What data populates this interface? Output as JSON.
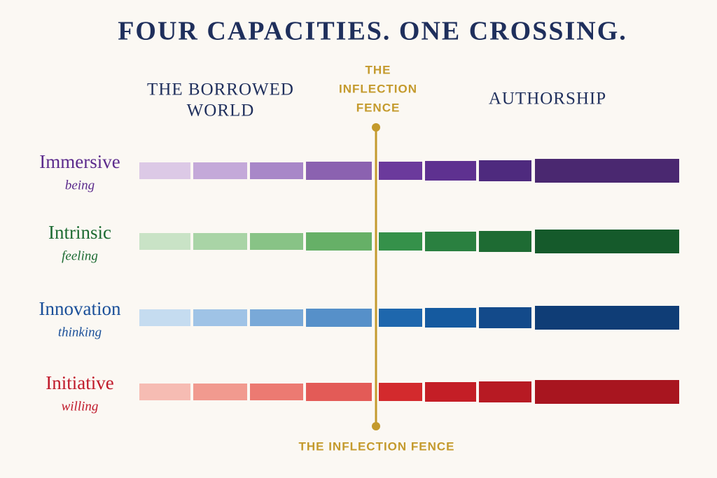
{
  "title": "FOUR CAPACITIES. ONE CROSSING.",
  "columns": {
    "left": [
      "THE BORROWED",
      "WORLD"
    ],
    "middle": [
      "THE",
      "INFLECTION",
      "FENCE"
    ],
    "right": "AUTHORSHIP"
  },
  "fence_label": "THE INFLECTION FENCE",
  "rows": [
    {
      "name": "Immersive",
      "subtitle": "being",
      "color": "#5b2a8c"
    },
    {
      "name": "Intrinsic",
      "subtitle": "feeling",
      "color": "#1c6b32"
    },
    {
      "name": "Innovation",
      "subtitle": "thinking",
      "color": "#1a4f99"
    },
    {
      "name": "Initiative",
      "subtitle": "willing",
      "color": "#c0192a"
    }
  ]
}
